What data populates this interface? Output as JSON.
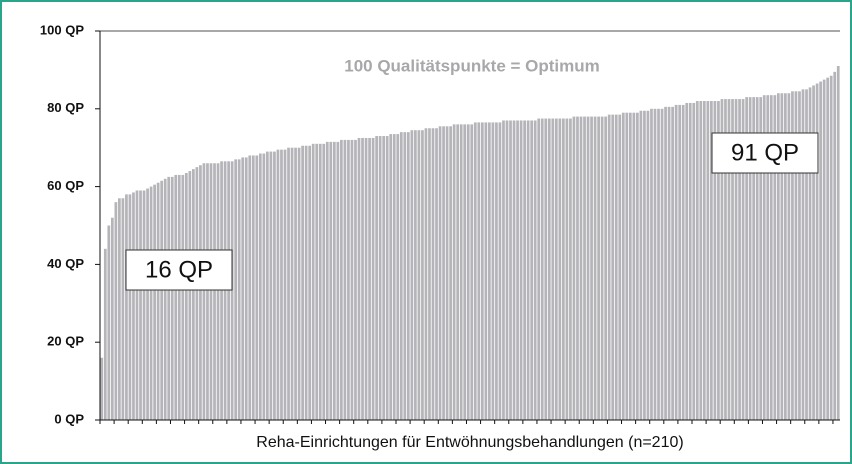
{
  "chart_data": {
    "type": "bar",
    "xlabel": "Reha-Einrichtungen für Entwöhnungsbehandlungen (n=210)",
    "annotations": [
      "100 Qualitätspunkte = Optimum",
      "16 QP",
      "91 QP"
    ],
    "color": "#b5b5b9",
    "ylim": [
      0,
      100
    ],
    "yticks": [
      {
        "value": 0,
        "label": "0 QP"
      },
      {
        "value": 20,
        "label": "20 QP"
      },
      {
        "value": 40,
        "label": "40 QP"
      },
      {
        "value": 60,
        "label": "60 QP"
      },
      {
        "value": 80,
        "label": "80 QP"
      },
      {
        "value": 100,
        "label": "100 QP"
      }
    ],
    "values": [
      16,
      44,
      50,
      52,
      56,
      57,
      57,
      58,
      58,
      58.5,
      59,
      59,
      59,
      59.5,
      60,
      60.5,
      61,
      61.5,
      62,
      62.5,
      62.5,
      63,
      63,
      63,
      63.5,
      64,
      64.5,
      65,
      65.5,
      66,
      66,
      66,
      66,
      66,
      66.5,
      66.5,
      66.5,
      66.5,
      67,
      67,
      67.5,
      67.5,
      68,
      68,
      68,
      68.5,
      68.5,
      69,
      69,
      69,
      69.5,
      69.5,
      69.5,
      70,
      70,
      70,
      70,
      70.5,
      70.5,
      70.5,
      71,
      71,
      71,
      71,
      71.5,
      71.5,
      71.5,
      71.5,
      72,
      72,
      72,
      72,
      72,
      72.5,
      72.5,
      72.5,
      72.5,
      72.5,
      73,
      73,
      73,
      73,
      73.5,
      73.5,
      73.5,
      74,
      74,
      74,
      74.5,
      74.5,
      74.5,
      74.5,
      75,
      75,
      75,
      75,
      75.5,
      75.5,
      75.5,
      75.5,
      76,
      76,
      76,
      76,
      76,
      76,
      76.5,
      76.5,
      76.5,
      76.5,
      76.5,
      76.5,
      76.5,
      76.5,
      77,
      77,
      77,
      77,
      77,
      77,
      77,
      77,
      77,
      77,
      77.5,
      77.5,
      77.5,
      77.5,
      77.5,
      77.5,
      77.5,
      77.5,
      77.5,
      77.5,
      78,
      78,
      78,
      78,
      78,
      78,
      78,
      78,
      78,
      78,
      78.5,
      78.5,
      78.5,
      78.5,
      79,
      79,
      79,
      79,
      79,
      79.5,
      79.5,
      79.5,
      80,
      80,
      80,
      80,
      80.5,
      80.5,
      80.5,
      81,
      81,
      81,
      81.5,
      81.5,
      81.5,
      82,
      82,
      82,
      82,
      82,
      82,
      82,
      82.5,
      82.5,
      82.5,
      82.5,
      82.5,
      82.5,
      82.5,
      83,
      83,
      83,
      83,
      83,
      83.5,
      83.5,
      83.5,
      83.5,
      84,
      84,
      84,
      84,
      84.5,
      84.5,
      84.5,
      85,
      85,
      85.5,
      86,
      86.5,
      87,
      87.5,
      88,
      88.5,
      89.5,
      91
    ]
  }
}
